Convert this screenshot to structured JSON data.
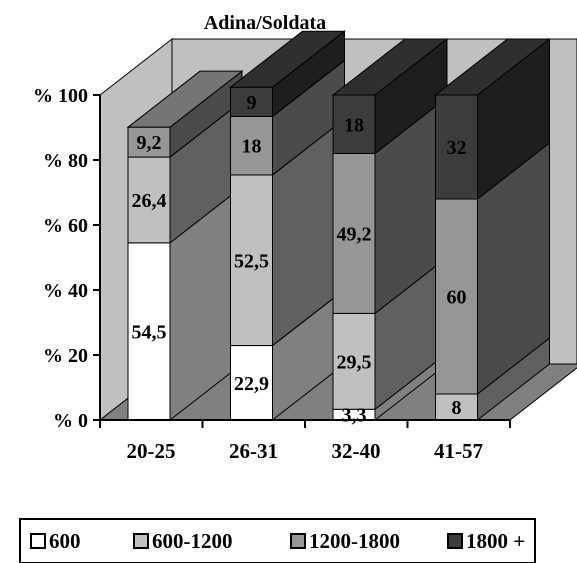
{
  "chart_data": {
    "type": "bar",
    "stacked": true,
    "percent": true,
    "three_d": true,
    "title": "Adina/Soldata",
    "xlabel": "",
    "ylabel": "",
    "ylim": [
      0,
      100
    ],
    "yticks": [
      "% 0",
      "% 20",
      "% 40",
      "% 60",
      "% 80",
      "% 100"
    ],
    "categories": [
      "20-25",
      "26-31",
      "32-40",
      "41-57"
    ],
    "series": [
      {
        "name": "600",
        "color": "#ffffff",
        "values": [
          54.5,
          22.9,
          3.3,
          0
        ],
        "labels": [
          "54,5",
          "22,9",
          "3,3",
          ""
        ]
      },
      {
        "name": "600-1200",
        "color": "#c0c0c0",
        "values": [
          26.4,
          52.5,
          29.5,
          8
        ],
        "labels": [
          "26,4",
          "52,5",
          "29,5",
          "8"
        ]
      },
      {
        "name": "1200-1800",
        "color": "#969696",
        "values": [
          9.2,
          18,
          49.2,
          60
        ],
        "labels": [
          "9,2",
          "18",
          "49,2",
          "60"
        ]
      },
      {
        "name": "1800 +",
        "color": "#3c3c3c",
        "values": [
          0,
          9,
          18,
          32
        ],
        "labels": [
          "",
          "9",
          "18",
          "32"
        ]
      }
    ],
    "legend_position": "bottom",
    "grid": false
  }
}
